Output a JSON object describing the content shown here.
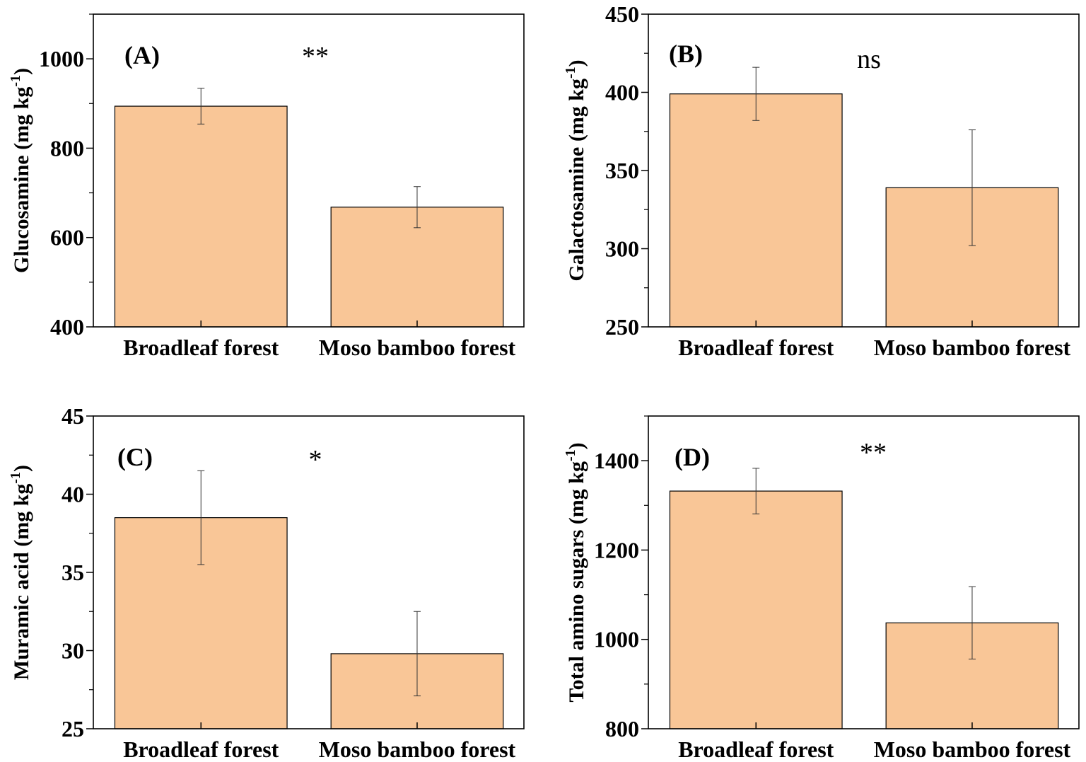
{
  "chart_data": [
    {
      "type": "bar",
      "panel_label": "(A)",
      "significance": "**",
      "categories": [
        "Broadleaf forest",
        "Moso bamboo forest"
      ],
      "values": [
        894,
        668
      ],
      "errors": [
        40,
        46
      ],
      "ylabel": "Glucosamine (mg kg",
      "ylabel_sup": "-1",
      "ylabel_end": ")",
      "ylim": [
        400,
        1100
      ],
      "yticks": [
        400,
        600,
        800,
        1000
      ],
      "bar_color": "#F9C697"
    },
    {
      "type": "bar",
      "panel_label": "(B)",
      "significance": "ns",
      "categories": [
        "Broadleaf forest",
        "Moso bamboo forest"
      ],
      "values": [
        399,
        339
      ],
      "errors": [
        17,
        37
      ],
      "ylabel": "Galactosamine (mg kg",
      "ylabel_sup": "-1",
      "ylabel_end": ")",
      "ylim": [
        250,
        450
      ],
      "yticks": [
        250,
        300,
        350,
        400,
        450
      ],
      "bar_color": "#F9C697"
    },
    {
      "type": "bar",
      "panel_label": "(C)",
      "significance": "*",
      "categories": [
        "Broadleaf forest",
        "Moso bamboo forest"
      ],
      "values": [
        38.5,
        29.8
      ],
      "errors": [
        3.0,
        2.7
      ],
      "ylabel": "Muramic acid (mg kg",
      "ylabel_sup": "-1",
      "ylabel_end": ")",
      "ylim": [
        25,
        45
      ],
      "yticks": [
        25,
        30,
        35,
        40,
        45
      ],
      "bar_color": "#F9C697"
    },
    {
      "type": "bar",
      "panel_label": "(D)",
      "significance": "**",
      "categories": [
        "Broadleaf forest",
        "Moso bamboo forest"
      ],
      "values": [
        1332,
        1037
      ],
      "errors": [
        51,
        81
      ],
      "ylabel": "Total amino sugars (mg kg",
      "ylabel_sup": "-1",
      "ylabel_end": ")",
      "ylim": [
        800,
        1500
      ],
      "yticks": [
        800,
        1000,
        1200,
        1400
      ],
      "bar_color": "#F9C697"
    }
  ]
}
